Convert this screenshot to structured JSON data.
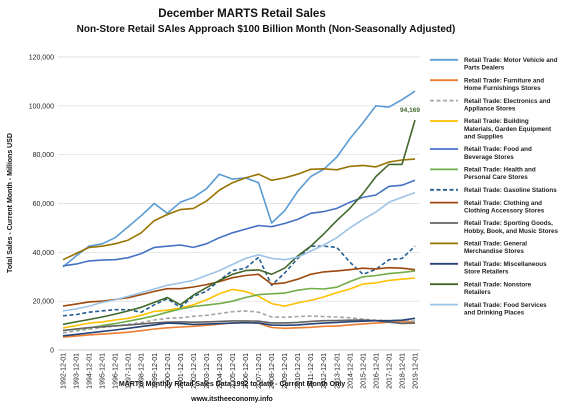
{
  "chart_data": {
    "type": "line",
    "title": "December MARTS Retail Sales",
    "subtitle": "Non-Store Retail SAles Approach $100 Billion Month  (Non-Seasonally Adjusted)",
    "ylabel": "Total Sales - Current Month - Millions USD",
    "xlabel": "MARTS Monthly Retail Sales Data 1992 to date - Current Month Only",
    "source": "www.itstheeconomy.info",
    "ylim": [
      0,
      120000
    ],
    "y_ticks": [
      "0",
      "20,000",
      "40,000",
      "60,000",
      "80,000",
      "100,000",
      "120,000"
    ],
    "x": [
      "1992-12-01",
      "1993-12-01",
      "1994-12-01",
      "1995-12-01",
      "1996-12-01",
      "1997-12-01",
      "1998-12-01",
      "1999-12-01",
      "2000-12-01",
      "2001-12-01",
      "2002-12-01",
      "2003-12-01",
      "2004-12-01",
      "2005-12-01",
      "2006-12-01",
      "2007-12-01",
      "2008-12-01",
      "2009-12-01",
      "2010-12-01",
      "2011-12-01",
      "2012-12-01",
      "2013-12-01",
      "2014-12-01",
      "2015-12-01",
      "2016-12-01",
      "2017-12-01",
      "2018-12-01",
      "2019-12-01"
    ],
    "grid": true,
    "legend_position": "right",
    "annotation": {
      "text": "94,169",
      "series": "Retail Trade: Nonstore Retailers",
      "x": "2019-12-01",
      "value": 94169
    },
    "series": [
      {
        "name": "Retail Trade: Motor Vehicle and Parts Dealers",
        "color": "#5b9bd5",
        "dash": false,
        "values": [
          34000,
          38500,
          42500,
          43500,
          46000,
          50500,
          55000,
          60000,
          56000,
          60500,
          62500,
          66000,
          72000,
          70000,
          70500,
          68500,
          52000,
          57000,
          65000,
          71000,
          74000,
          79000,
          86500,
          93000,
          100000,
          99500,
          102500,
          106000
        ]
      },
      {
        "name": "Retail Trade: Furniture and Home Furnishings Stores",
        "color": "#ed7d31",
        "dash": false,
        "values": [
          5300,
          5700,
          6200,
          6500,
          6900,
          7300,
          7900,
          8600,
          9100,
          9400,
          9700,
          10100,
          10600,
          11100,
          11300,
          11000,
          9200,
          8900,
          9100,
          9300,
          9700,
          9800,
          10300,
          10700,
          11000,
          11400,
          11700,
          11600
        ]
      },
      {
        "name": "Retail Trade: Electronics and Appliance Stores",
        "color": "#a5a5a5",
        "dash": true,
        "values": [
          7000,
          7800,
          8500,
          9200,
          9800,
          10500,
          11200,
          12300,
          13000,
          13200,
          13800,
          14200,
          14900,
          15700,
          16000,
          15500,
          13500,
          13400,
          13700,
          13900,
          13700,
          13500,
          13200,
          12600,
          12200,
          12000,
          12100,
          11800
        ]
      },
      {
        "name": "Retail Trade: Building Materials, Garden Equipment and Supplies",
        "color": "#ffc000",
        "dash": false,
        "values": [
          9000,
          10000,
          11000,
          11500,
          12300,
          13000,
          14200,
          15800,
          16300,
          17200,
          18500,
          20500,
          23000,
          24800,
          24000,
          22000,
          19000,
          18000,
          19300,
          20300,
          21700,
          23500,
          25000,
          27000,
          27500,
          28500,
          29000,
          29500
        ]
      },
      {
        "name": "Retail Trade: Food and Beverage Stores",
        "color": "#4472c4",
        "dash": false,
        "values": [
          34500,
          35200,
          36500,
          36800,
          37000,
          37800,
          39500,
          42000,
          42500,
          43000,
          42000,
          43500,
          46000,
          48000,
          49500,
          51000,
          50500,
          51800,
          53500,
          56000,
          56700,
          58000,
          60500,
          62500,
          63500,
          67000,
          67500,
          69500
        ]
      },
      {
        "name": "Retail Trade: Health and Personal Care Stores",
        "color": "#70ad47",
        "dash": false,
        "values": [
          8000,
          8500,
          9000,
          10000,
          10800,
          11800,
          12800,
          14000,
          15500,
          16800,
          17800,
          18400,
          19000,
          20000,
          21500,
          22700,
          23000,
          23300,
          24500,
          25200,
          25000,
          25700,
          28000,
          30000,
          30500,
          31300,
          31800,
          32400
        ]
      },
      {
        "name": "Retail Trade: Gasoline Stations",
        "color": "#255e91",
        "dash": true,
        "values": [
          14000,
          14500,
          15500,
          16000,
          16500,
          16500,
          15500,
          18500,
          21000,
          17500,
          22000,
          24000,
          28500,
          32500,
          33500,
          38000,
          26500,
          31500,
          37500,
          42500,
          42500,
          42000,
          36000,
          31000,
          33000,
          37000,
          37500,
          42500
        ]
      },
      {
        "name": "Retail Trade: Clothing and Clothing Accessory Stores",
        "color": "#9e480e",
        "dash": false,
        "values": [
          18000,
          18800,
          19700,
          20000,
          20700,
          21400,
          22700,
          24000,
          25100,
          25100,
          25800,
          26800,
          28000,
          29600,
          30500,
          31000,
          27000,
          27500,
          29000,
          31000,
          32000,
          32400,
          32900,
          33500,
          33200,
          33700,
          33500,
          32900
        ]
      },
      {
        "name": "Retail Trade: Sporting Goods, Hobby, Book, and Music Stores",
        "color": "#636363",
        "dash": false,
        "values": [
          8000,
          8600,
          9200,
          9500,
          9900,
          10200,
          10700,
          11100,
          11400,
          11500,
          11400,
          11500,
          11700,
          11900,
          11900,
          11800,
          11100,
          11100,
          11300,
          11700,
          12000,
          12100,
          12200,
          12300,
          12000,
          11400,
          10900,
          11000
        ]
      },
      {
        "name": "Retail Trade: General Merchandise Stores",
        "color": "#997300",
        "dash": false,
        "values": [
          37000,
          39500,
          42000,
          42500,
          43500,
          45000,
          48000,
          53000,
          55500,
          57500,
          58000,
          61000,
          65500,
          68500,
          70500,
          72000,
          69500,
          70500,
          72000,
          74000,
          74200,
          73800,
          75200,
          75600,
          75000,
          77000,
          77800,
          78200
        ]
      },
      {
        "name": "Retail Trade: Miscellaneous Store Retailers",
        "color": "#264478",
        "dash": false,
        "values": [
          5800,
          6400,
          7000,
          7600,
          8200,
          8900,
          9600,
          10300,
          11000,
          10800,
          10500,
          10600,
          10800,
          11000,
          11200,
          11000,
          10200,
          10100,
          10300,
          10700,
          11000,
          11300,
          11600,
          11800,
          12000,
          12000,
          12200,
          13000
        ]
      },
      {
        "name": "Retail Trade: Nonstore Retailers",
        "color": "#43682b",
        "dash": false,
        "values": [
          10500,
          11500,
          12500,
          13500,
          14700,
          16000,
          17500,
          19500,
          21500,
          18500,
          22500,
          25500,
          28500,
          31000,
          32500,
          32800,
          31000,
          33500,
          38500,
          42500,
          47500,
          53000,
          58000,
          64000,
          71000,
          76000,
          76000,
          94169
        ]
      },
      {
        "name": "Retail Trade: Food Services and Drinking Places",
        "color": "#9dc3e6",
        "dash": false,
        "values": [
          16000,
          16800,
          18000,
          19500,
          20500,
          22000,
          23500,
          25000,
          26500,
          27500,
          28500,
          30500,
          32500,
          35000,
          37500,
          39000,
          37500,
          37000,
          38000,
          40500,
          43000,
          46000,
          50000,
          53500,
          56500,
          60500,
          62500,
          64500
        ]
      }
    ]
  }
}
